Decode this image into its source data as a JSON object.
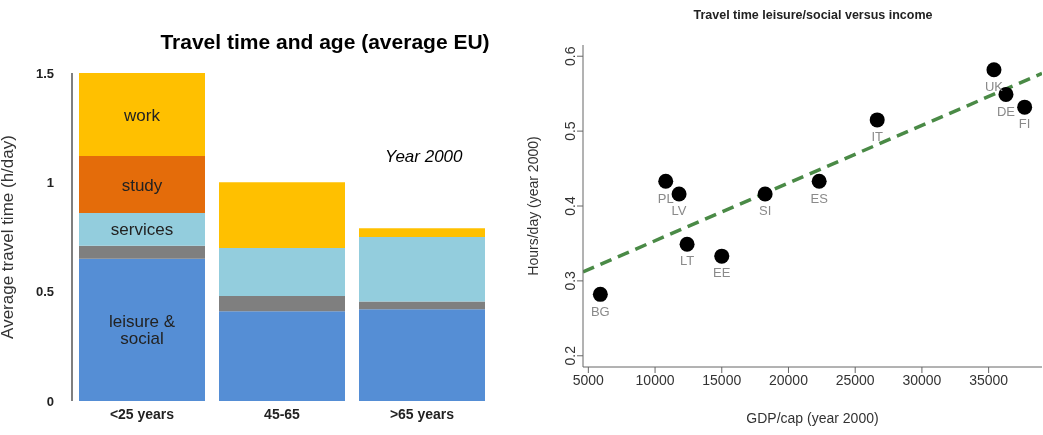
{
  "chart_data": [
    {
      "type": "bar",
      "title": "Travel time and age (average EU)",
      "ylabel": "Average travel time (h/day)",
      "categories": [
        "<25 years",
        "45-65",
        ">65 years"
      ],
      "stacked": true,
      "ylim": [
        0,
        1.5
      ],
      "yticks": [
        0,
        0.5,
        1,
        1.5
      ],
      "grid": false,
      "legend": false,
      "annotations": [
        "Year 2000"
      ],
      "series": [
        {
          "name": "leisure & social",
          "color": "#558ed5",
          "values": [
            0.65,
            0.41,
            0.42
          ]
        },
        {
          "color": "#7f7f7f",
          "values": [
            0.06,
            0.07,
            0.035
          ]
        },
        {
          "name": "services",
          "color": "#93cddd",
          "values": [
            0.15,
            0.22,
            0.295
          ]
        },
        {
          "name": "study",
          "color": "#e46c0a",
          "values": [
            0.26,
            0,
            0
          ]
        },
        {
          "name": "work",
          "color": "#ffc000",
          "values": [
            0.38,
            0.3,
            0.04
          ]
        }
      ]
    },
    {
      "type": "scatter",
      "title": "Travel time leisure/social versus income",
      "xlabel": "GDP/cap (year 2000)",
      "ylabel": "Hours/day (year 2000)",
      "xlim": [
        4600,
        39000
      ],
      "ylim": [
        0.185,
        0.615
      ],
      "xticks": [
        5000,
        10000,
        15000,
        20000,
        25000,
        30000,
        35000
      ],
      "yticks": [
        0.2,
        0.3,
        0.4,
        0.5,
        0.6
      ],
      "grid": false,
      "legend": false,
      "series": [
        {
          "color": "#000000",
          "marker": "circle",
          "x": [
            5900,
            10800,
            11800,
            12400,
            15000,
            18250,
            22300,
            26650,
            35400,
            36300,
            37700
          ],
          "values": [
            0.282,
            0.433,
            0.416,
            0.349,
            0.333,
            0.416,
            0.433,
            0.515,
            0.582,
            0.549,
            0.532
          ]
        },
        {
          "type": "line",
          "color": "#4a8a46",
          "line_style": "dashed",
          "marker": "none",
          "x": [
            4600,
            39000
          ],
          "values": [
            0.312,
            0.577
          ]
        }
      ],
      "annotations": [
        {
          "text": "BG",
          "x": 5900,
          "y": 0.282
        },
        {
          "text": "PL",
          "x": 10800,
          "y": 0.433
        },
        {
          "text": "LV",
          "x": 11800,
          "y": 0.416
        },
        {
          "text": "LT",
          "x": 12400,
          "y": 0.349
        },
        {
          "text": "EE",
          "x": 15000,
          "y": 0.333
        },
        {
          "text": "SI",
          "x": 18250,
          "y": 0.416
        },
        {
          "text": "ES",
          "x": 22300,
          "y": 0.433
        },
        {
          "text": "IT",
          "x": 26650,
          "y": 0.515
        },
        {
          "text": "UK",
          "x": 35400,
          "y": 0.582
        },
        {
          "text": "DE",
          "x": 36300,
          "y": 0.549
        },
        {
          "text": "FI",
          "x": 37700,
          "y": 0.532
        }
      ]
    }
  ]
}
